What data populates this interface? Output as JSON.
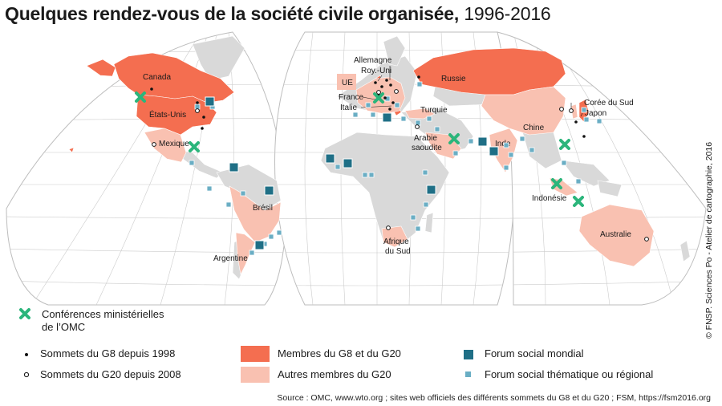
{
  "title": {
    "main": "Quelques rendez-vous de la société civile organisée,",
    "period": "1996-2016"
  },
  "copyright": "© FNSP. Sciences Po - Atelier de cartographie, 2016",
  "source": "Source : OMC, www.wto.org ; sites web officiels des différents sommets du G8 et du G20 ; FSM, https://fsm2016.org",
  "colors": {
    "g8_g20": "#f46e50",
    "g20_other": "#f9c1b1",
    "land": "#d9d9d9",
    "forum_mondial": "#1f6f86",
    "forum_regional": "#6aaec4",
    "wto": "#2bb57b",
    "graticule": "#c9c9c9"
  },
  "legend": {
    "wto_line1": "Conférences ministérielles",
    "wto_line2": "de l’OMC",
    "g8": "Sommets du G8 depuis 1998",
    "g20": "Sommets du G20 depuis 2008",
    "members_g8_g20": "Membres du G8 et du G20",
    "members_g20": "Autres membres du G20",
    "forum_world": "Forum social mondial",
    "forum_thematic": "Forum social thématique ou régional"
  },
  "labels": {
    "canada": "Canada",
    "usa": "États-Unis",
    "mexique": "Mexique",
    "bresil": "Brésil",
    "argentine": "Argentine",
    "ue": "UE",
    "allemagne": "Allemagne",
    "roy_uni": "Roy.-Uni",
    "france": "France",
    "italie": "Italie",
    "russie": "Russie",
    "turquie": "Turquie",
    "arabie1": "Arabie",
    "arabie2": "saoudite",
    "afrique1": "Afrique",
    "afrique2": "du Sud",
    "chine": "Chine",
    "inde": "Inde",
    "coree": "Corée du Sud",
    "japon": "Japon",
    "indonesie": "Indonésie",
    "australie": "Australie"
  }
}
